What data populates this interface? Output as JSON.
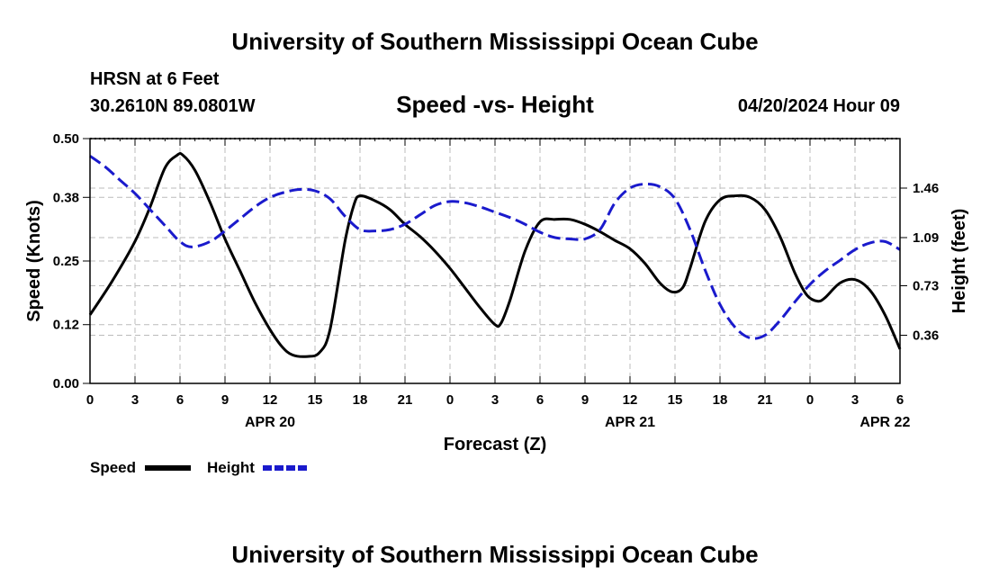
{
  "header": {
    "title": "University of Southern Mississippi Ocean Cube",
    "station": "HRSN at 6 Feet",
    "coords": "30.2610N  89.0801W",
    "date": "04/20/2024 Hour 09",
    "footer_title": "University of Southern Mississippi Ocean Cube"
  },
  "chart_data": {
    "type": "line",
    "title": "Speed -vs- Height",
    "xlabel": "Forecast (Z)",
    "ylabel_left": "Speed (Knots)",
    "ylabel_right": "Height (feet)",
    "x_range_hours": [
      0,
      54
    ],
    "x_ticks": [
      {
        "h": 0,
        "label": "0"
      },
      {
        "h": 3,
        "label": "3"
      },
      {
        "h": 6,
        "label": "6"
      },
      {
        "h": 9,
        "label": "9"
      },
      {
        "h": 12,
        "label": "12"
      },
      {
        "h": 15,
        "label": "15"
      },
      {
        "h": 18,
        "label": "18"
      },
      {
        "h": 21,
        "label": "21"
      },
      {
        "h": 24,
        "label": "0"
      },
      {
        "h": 27,
        "label": "3"
      },
      {
        "h": 30,
        "label": "6"
      },
      {
        "h": 33,
        "label": "9"
      },
      {
        "h": 36,
        "label": "12"
      },
      {
        "h": 39,
        "label": "15"
      },
      {
        "h": 42,
        "label": "18"
      },
      {
        "h": 45,
        "label": "21"
      },
      {
        "h": 48,
        "label": "0"
      },
      {
        "h": 51,
        "label": "3"
      },
      {
        "h": 54,
        "label": "6"
      }
    ],
    "date_labels": [
      {
        "h": 12,
        "label": "APR 20"
      },
      {
        "h": 36,
        "label": "APR 21"
      },
      {
        "h": 53,
        "label": "APR 22"
      }
    ],
    "ylim_left": [
      0,
      0.5
    ],
    "left_ticks": [
      "0.00",
      "0.12",
      "0.25",
      "0.38",
      "0.50"
    ],
    "ylim_right": [
      0.0,
      1.83
    ],
    "right_ticks": [
      "0.36",
      "0.73",
      "1.09",
      "1.46"
    ],
    "grid": true,
    "series": [
      {
        "name": "Speed",
        "axis": "left",
        "color": "#000000",
        "style": "solid",
        "x": [
          0,
          1.5,
          3,
          4,
          5,
          5.8,
          6.2,
          7,
          8,
          9,
          10,
          11,
          12,
          12.8,
          13.5,
          14.5,
          15.3,
          16,
          17,
          17.6,
          18,
          19,
          20,
          21,
          22,
          23,
          24,
          25,
          26,
          27,
          27.4,
          28,
          29,
          30,
          31,
          32,
          33,
          34,
          35,
          36,
          37,
          38,
          38.8,
          39.5,
          40,
          41,
          42,
          43,
          44,
          45,
          46,
          47,
          47.8,
          48.5,
          49,
          50,
          51,
          52,
          53,
          54
        ],
        "values": [
          0.14,
          0.21,
          0.29,
          0.36,
          0.44,
          0.466,
          0.466,
          0.435,
          0.37,
          0.295,
          0.23,
          0.165,
          0.11,
          0.075,
          0.058,
          0.055,
          0.063,
          0.11,
          0.29,
          0.365,
          0.383,
          0.373,
          0.355,
          0.325,
          0.3,
          0.27,
          0.235,
          0.195,
          0.155,
          0.12,
          0.123,
          0.17,
          0.27,
          0.33,
          0.335,
          0.335,
          0.325,
          0.31,
          0.292,
          0.275,
          0.245,
          0.205,
          0.187,
          0.195,
          0.235,
          0.33,
          0.375,
          0.383,
          0.38,
          0.355,
          0.3,
          0.225,
          0.18,
          0.168,
          0.175,
          0.205,
          0.212,
          0.19,
          0.14,
          0.07
        ]
      },
      {
        "name": "Height",
        "axis": "right",
        "color": "#1a1acc",
        "style": "dashed",
        "x": [
          0,
          1,
          2,
          3,
          4,
          5,
          6,
          6.8,
          8,
          9,
          10,
          11,
          12,
          13,
          14,
          15,
          16,
          17,
          18,
          19,
          20,
          21,
          22,
          23,
          24,
          25,
          26,
          27,
          28,
          29,
          30,
          31,
          32,
          33,
          34,
          35,
          36,
          37,
          38,
          39,
          40,
          41,
          42,
          43,
          44,
          45,
          46,
          47,
          48,
          49,
          50,
          51,
          52,
          53,
          54
        ],
        "values": [
          1.7,
          1.62,
          1.52,
          1.42,
          1.3,
          1.18,
          1.06,
          1.02,
          1.06,
          1.14,
          1.23,
          1.32,
          1.39,
          1.43,
          1.45,
          1.44,
          1.38,
          1.25,
          1.15,
          1.14,
          1.15,
          1.19,
          1.26,
          1.33,
          1.36,
          1.35,
          1.32,
          1.28,
          1.24,
          1.19,
          1.13,
          1.09,
          1.08,
          1.08,
          1.15,
          1.35,
          1.46,
          1.49,
          1.47,
          1.38,
          1.15,
          0.85,
          0.59,
          0.42,
          0.34,
          0.36,
          0.47,
          0.61,
          0.74,
          0.84,
          0.92,
          1.0,
          1.05,
          1.06,
          1.0
        ]
      }
    ]
  }
}
